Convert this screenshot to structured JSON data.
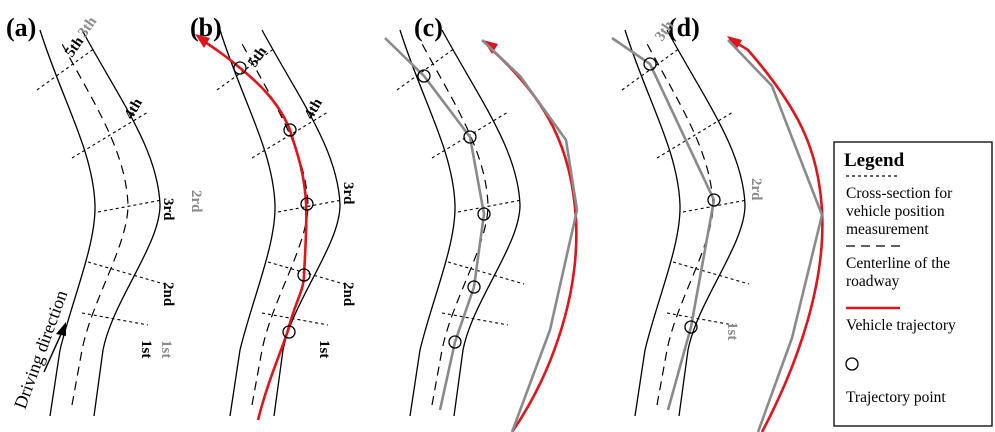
{
  "panels": [
    {
      "label": "(a)",
      "sections": [
        "1st",
        "2nd",
        "3rd",
        "4th",
        "5th",
        "3th",
        "1st",
        "2rd"
      ]
    },
    {
      "label": "(b)",
      "sections": [
        "1st",
        "2nd",
        "3rd",
        "4th",
        "5th"
      ]
    },
    {
      "label": "(c)"
    },
    {
      "label": "(d)",
      "sections": [
        "1st",
        "2rd",
        "3th"
      ]
    }
  ],
  "direction_label": "Driving direction",
  "legend": {
    "title": "Legend",
    "items": [
      {
        "symbol": "short-dash",
        "lines": [
          "Cross-section for",
          "vehicle position",
          "measurement"
        ]
      },
      {
        "symbol": "long-dash",
        "lines": [
          "Centerline of the",
          "roadway"
        ]
      },
      {
        "symbol": "red-line",
        "lines": [
          "Vehicle trajectory"
        ]
      },
      {
        "symbol": "circle",
        "lines": [
          "Trajectory point"
        ]
      }
    ]
  },
  "colors": {
    "trajectory_red": "#e0141a",
    "trajectory_gray": "#8a8a8a",
    "line": "#000000"
  }
}
